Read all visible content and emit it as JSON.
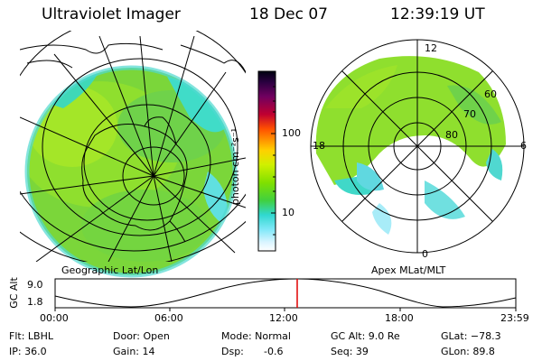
{
  "header": {
    "title": "Ultraviolet Imager",
    "date": "18 Dec 07",
    "time": "12:39:19 UT"
  },
  "left_map": {
    "caption": "Geographic Lat/Lon"
  },
  "right_map": {
    "caption": "Apex MLat/MLT",
    "mlt_labels": [
      "12",
      "18",
      "6",
      "0"
    ],
    "mlat_labels": [
      "60",
      "70",
      "80"
    ]
  },
  "colorbar": {
    "label": "photon cm⁻²s⁻¹",
    "ticks": [
      "100",
      "10"
    ],
    "colors": [
      "#000000",
      "#3a0040",
      "#6a0070",
      "#a00060",
      "#e0002a",
      "#ff6000",
      "#ffa000",
      "#ffe000",
      "#c8f000",
      "#80e000",
      "#50d040",
      "#30d8c0",
      "#40e0f0",
      "#c8f0ff",
      "#ffffff"
    ]
  },
  "altitude_plot": {
    "ylabel": "GC Alt",
    "y_ticks": [
      "9.0",
      "1.8"
    ],
    "x_ticks": [
      "00:00",
      "06:00",
      "12:00",
      "18:00",
      "23:59"
    ],
    "marker_color": "#e00000"
  },
  "info": {
    "flt": "Flt: LBHL",
    "ip": "IP: 36.0",
    "door": "Door: Open",
    "gain": "Gain: 14",
    "mode": "Mode: Normal",
    "dsp": "Dsp:",
    "dsp_val": "-0.6",
    "gcalt": "GC Alt: 9.0 Re",
    "seq": "Seq: 39",
    "glat": "GLat: −78.3",
    "glon": "GLon:  89.8"
  }
}
